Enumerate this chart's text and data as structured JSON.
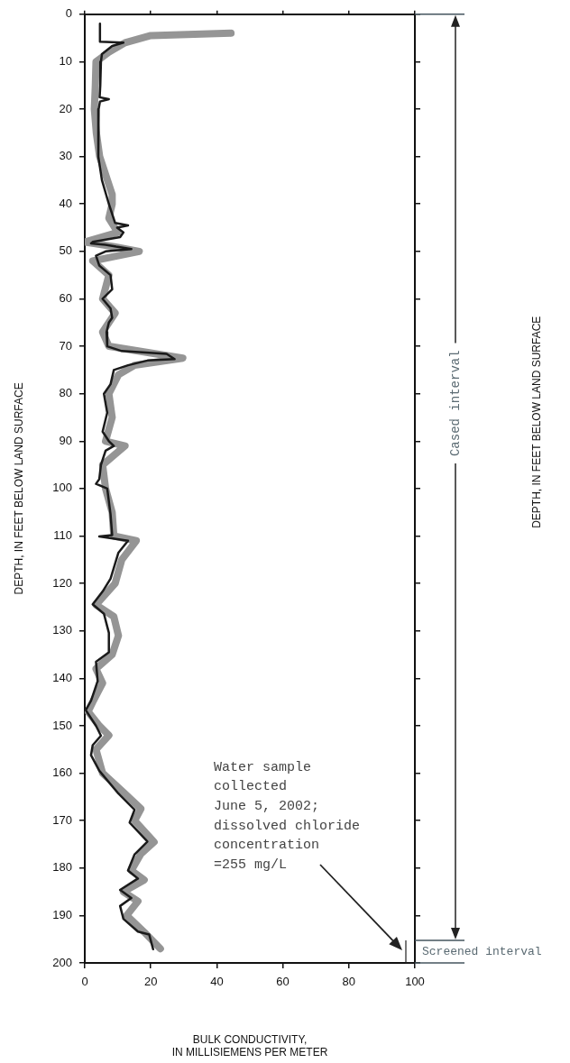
{
  "chart_data": {
    "type": "line",
    "xlabel": "BULK CONDUCTIVITY,\nIN MILLISIEMENS PER METER",
    "ylabel": "DEPTH, IN FEET BELOW LAND SURFACE",
    "xlim": [
      0,
      100
    ],
    "xticks": [
      0,
      20,
      40,
      60,
      80,
      100
    ],
    "ylim": [
      200,
      0
    ],
    "yticks": [
      0,
      10,
      20,
      30,
      40,
      50,
      60,
      70,
      80,
      90,
      100,
      110,
      120,
      130,
      140,
      150,
      160,
      170,
      180,
      190,
      200
    ],
    "grid": false,
    "legend": false,
    "marker": "none",
    "line_style": "solid",
    "series": [
      {
        "color": "#1a1a1a",
        "x": [
          4.6,
          4.6,
          11.7,
          8.3,
          5.2,
          4.9,
          4.7,
          4.5,
          7.3,
          4.6,
          4.2,
          4.1,
          5.2,
          7.3,
          9.2,
          13.1,
          9.8,
          11.7,
          10.7,
          2.4,
          1.9,
          6.3,
          9.5,
          14.1,
          6.3,
          3.4,
          4.4,
          7.8,
          8.3,
          5.4,
          7.8,
          8.3,
          7.3,
          6.6,
          6.8,
          11.2,
          24.8,
          27.2,
          19,
          13.1,
          8.8,
          7.8,
          5.8,
          6.8,
          5.4,
          7.3,
          8.8,
          6.3,
          4.9,
          4.4,
          3.4,
          6.8,
          7.8,
          8.3,
          4.4,
          13.1,
          10.2,
          7.8,
          5.4,
          2.4,
          5.8,
          7.3,
          7.3,
          3.4,
          3.9,
          1.9,
          0.3,
          3.4,
          4.9,
          2.4,
          1.9,
          4.4,
          10.2,
          15.1,
          13.6,
          19,
          15.1,
          13.1,
          16.1,
          10.7,
          14.1,
          10.7,
          11.7,
          16.1,
          19.5,
          20.7
        ],
        "values": [
          2,
          5.8,
          6,
          6.7,
          8.4,
          10,
          15,
          17.5,
          17.9,
          18.4,
          20,
          30,
          35,
          40,
          44,
          44.5,
          45,
          46,
          47,
          48,
          48.3,
          48.6,
          49,
          49.5,
          50,
          50.9,
          53,
          55,
          58,
          60,
          62,
          64,
          65,
          67,
          70,
          71,
          71.6,
          72.7,
          73,
          74,
          75,
          78,
          80,
          84,
          88,
          90,
          91,
          92,
          95,
          98,
          99,
          100,
          105.4,
          109.8,
          110.1,
          111,
          113.5,
          119,
          121.7,
          124.4,
          126.4,
          130.4,
          134.5,
          136.5,
          140.6,
          144.7,
          146.7,
          150,
          152.1,
          154.1,
          156.2,
          159.5,
          164.3,
          167.7,
          170.4,
          174.4,
          177.1,
          180.5,
          182.2,
          184.6,
          186.3,
          188,
          190.7,
          193.4,
          194,
          197.1
        ]
      },
      {
        "color": "#959595",
        "x": [
          44.3,
          20,
          12.2,
          7.3,
          3.4,
          3.2,
          2.9,
          3.5,
          4.5,
          8.3,
          8.3,
          7.3,
          10,
          0,
          9,
          16.5,
          2.4,
          7.3,
          5.4,
          9.2,
          5.4,
          7.3,
          29.7,
          15.1,
          10.2,
          7.3,
          8.3,
          6.3,
          12.2,
          5.4,
          6.3,
          8.3,
          8.8,
          15.6,
          11.2,
          9.2,
          3.4,
          8.8,
          10.2,
          8.3,
          3.4,
          5.4,
          2.4,
          1,
          4.4,
          7.3,
          3.4,
          5.4,
          11.7,
          17,
          15.1,
          21,
          17,
          14.1,
          18,
          11.7,
          16.1,
          12.7,
          18,
          22.9
        ],
        "values": [
          4,
          4.5,
          6,
          8,
          10,
          15,
          20,
          25,
          30,
          38,
          40,
          43,
          46,
          48,
          49,
          50,
          52,
          55,
          60,
          63,
          67,
          70,
          72.5,
          74,
          76,
          80,
          85,
          90,
          91,
          95,
          100,
          105,
          110,
          111,
          115,
          120,
          124.5,
          127,
          131,
          135,
          138,
          141,
          145,
          147,
          150,
          152,
          155,
          160,
          164,
          167.5,
          170,
          174.5,
          177,
          180.5,
          182.5,
          185,
          187,
          190,
          193.5,
          197
        ]
      }
    ],
    "annotations": [
      "Cased interval",
      "Water sample\ncollected\nJune 5, 2002;\ndissolved chloride\nconcentration\n=255 mg/L",
      "Screened interval",
      "DEPTH, IN FEET BELOW LAND SURFACE"
    ]
  }
}
